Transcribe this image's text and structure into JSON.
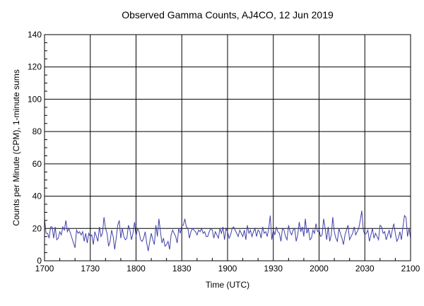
{
  "chart_data": {
    "type": "line",
    "title": "Observed Gamma Counts, AJ4CO, 12 Jun 2019",
    "xlabel": "Time (UTC)",
    "ylabel": "Counts per Minute (CPM), 1-minute sums",
    "x_tick_labels": [
      "1700",
      "1730",
      "1800",
      "1830",
      "1900",
      "1930",
      "2000",
      "2030",
      "2100"
    ],
    "y_ticks": [
      0,
      20,
      40,
      60,
      80,
      100,
      120,
      140
    ],
    "ylim": [
      0,
      140
    ],
    "xlim": [
      "1700",
      "2100"
    ],
    "x_start": "1700",
    "interval_minutes": 1,
    "grid": true,
    "line_color": "#4040a8",
    "series": [
      {
        "values": [
          26,
          17,
          17,
          14,
          21,
          21,
          14,
          21,
          13,
          14,
          18,
          16,
          21,
          19,
          25,
          18,
          20,
          17,
          14,
          11,
          8,
          19,
          17,
          18,
          16,
          18,
          12,
          17,
          11,
          17,
          15,
          16,
          10,
          18,
          15,
          12,
          21,
          15,
          17,
          27,
          20,
          17,
          9,
          12,
          19,
          15,
          7,
          14,
          22,
          25,
          14,
          20,
          15,
          13,
          14,
          22,
          19,
          13,
          17,
          24,
          15,
          20,
          18,
          13,
          12,
          14,
          18,
          11,
          6,
          12,
          17,
          13,
          10,
          22,
          15,
          26,
          18,
          11,
          14,
          9,
          10,
          12,
          7,
          16,
          19,
          17,
          15,
          11,
          20,
          17,
          22,
          22,
          26,
          21,
          20,
          14,
          18,
          20,
          19,
          18,
          16,
          19,
          18,
          20,
          17,
          18,
          15,
          15,
          18,
          20,
          19,
          14,
          18,
          16,
          14,
          20,
          17,
          21,
          13,
          20,
          18,
          14,
          16,
          20,
          21,
          19,
          17,
          15,
          19,
          17,
          15,
          19,
          13,
          22,
          17,
          19,
          15,
          18,
          20,
          15,
          19,
          18,
          14,
          21,
          17,
          18,
          15,
          20,
          28,
          13,
          19,
          16,
          21,
          18,
          17,
          12,
          20,
          19,
          15,
          13,
          22,
          18,
          16,
          19,
          20,
          12,
          16,
          24,
          18,
          21,
          15,
          26,
          17,
          20,
          13,
          14,
          19,
          17,
          23,
          18,
          19,
          15,
          16,
          26,
          20,
          13,
          21,
          12,
          16,
          27,
          18,
          14,
          12,
          20,
          17,
          14,
          10,
          16,
          19,
          22,
          13,
          15,
          17,
          21,
          16,
          18,
          20,
          25,
          31,
          19,
          16,
          17,
          19,
          12,
          16,
          20,
          14,
          17,
          15,
          13,
          22,
          21,
          17,
          18,
          13,
          16,
          19,
          14,
          19,
          23,
          17,
          12,
          14,
          18,
          13,
          21,
          28,
          27,
          15,
          20,
          14
        ]
      }
    ]
  }
}
